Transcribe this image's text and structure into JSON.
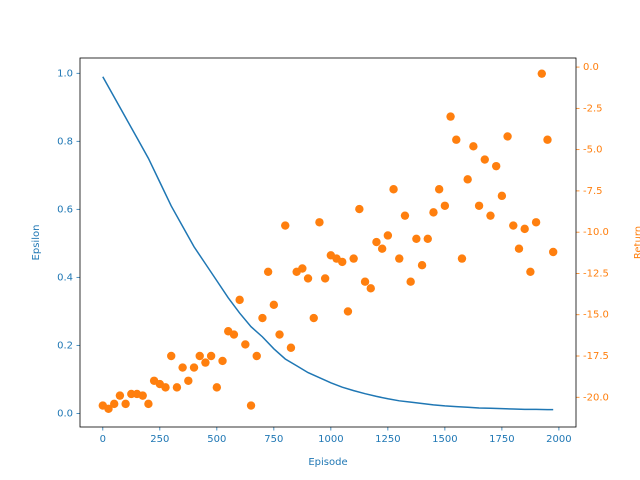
{
  "chart_data": {
    "type": "dual_axis",
    "xlabel": "Episode",
    "ylabel": "Epsilon",
    "y2label": "Return",
    "xlim": [
      -100,
      2075
    ],
    "ylim": [
      -0.04,
      1.045
    ],
    "y2lim": [
      -21.8,
      0.55
    ],
    "xticks": [
      0,
      250,
      500,
      750,
      1000,
      1250,
      1500,
      1750,
      2000
    ],
    "yticks": [
      {
        "value": 0,
        "label": "0.0"
      },
      {
        "value": 0.2,
        "label": "0.2"
      },
      {
        "value": 0.4,
        "label": "0.4"
      },
      {
        "value": 0.6,
        "label": "0.6"
      },
      {
        "value": 0.8,
        "label": "0.8"
      },
      {
        "value": 1,
        "label": "1.0"
      }
    ],
    "y2ticks": [
      {
        "value": 0,
        "label": "0.0"
      },
      {
        "value": -2.5,
        "label": "-2.5"
      },
      {
        "value": -5,
        "label": "-5.0"
      },
      {
        "value": -7.5,
        "label": "-7.5"
      },
      {
        "value": -10,
        "label": "-10.0"
      },
      {
        "value": -12.5,
        "label": "-12.5"
      },
      {
        "value": -15,
        "label": "-15.0"
      },
      {
        "value": -17.5,
        "label": "-17.5"
      },
      {
        "value": -20,
        "label": "-20.0"
      }
    ],
    "series": [
      {
        "type": "line",
        "color": "#1f77b4",
        "x": [
          0,
          50,
          100,
          150,
          200,
          250,
          300,
          350,
          400,
          450,
          500,
          550,
          600,
          650,
          700,
          750,
          800,
          850,
          900,
          950,
          1000,
          1050,
          1100,
          1150,
          1200,
          1250,
          1300,
          1350,
          1400,
          1450,
          1500,
          1550,
          1600,
          1650,
          1700,
          1750,
          1800,
          1850,
          1900,
          1950,
          1975
        ],
        "values": [
          0.99,
          0.93,
          0.87,
          0.81,
          0.75,
          0.68,
          0.61,
          0.55,
          0.49,
          0.44,
          0.39,
          0.34,
          0.295,
          0.255,
          0.225,
          0.19,
          0.16,
          0.14,
          0.12,
          0.105,
          0.09,
          0.077,
          0.067,
          0.058,
          0.05,
          0.043,
          0.037,
          0.033,
          0.029,
          0.025,
          0.022,
          0.02,
          0.018,
          0.016,
          0.015,
          0.014,
          0.013,
          0.012,
          0.012,
          0.011,
          0.011
        ]
      },
      {
        "type": "scatter",
        "color": "#ff7f0e",
        "axis": "y2",
        "x": [
          0,
          25,
          50,
          75,
          100,
          125,
          150,
          175,
          200,
          225,
          250,
          275,
          300,
          325,
          350,
          375,
          400,
          425,
          450,
          475,
          500,
          525,
          550,
          575,
          600,
          625,
          650,
          675,
          700,
          725,
          750,
          775,
          800,
          825,
          850,
          875,
          900,
          925,
          950,
          975,
          1000,
          1025,
          1050,
          1075,
          1100,
          1125,
          1150,
          1175,
          1200,
          1225,
          1250,
          1275,
          1300,
          1325,
          1350,
          1375,
          1400,
          1425,
          1450,
          1475,
          1500,
          1525,
          1550,
          1575,
          1600,
          1625,
          1650,
          1675,
          1700,
          1725,
          1750,
          1775,
          1800,
          1825,
          1850,
          1875,
          1900,
          1925,
          1950,
          1975
        ],
        "values": [
          -20.5,
          -20.7,
          -20.4,
          -19.9,
          -20.4,
          -19.8,
          -19.8,
          -19.9,
          -20.4,
          -19.0,
          -19.2,
          -19.4,
          -17.5,
          -19.4,
          -18.2,
          -19.0,
          -18.2,
          -17.5,
          -17.9,
          -17.5,
          -19.4,
          -17.8,
          -16.0,
          -16.2,
          -14.1,
          -16.8,
          -20.5,
          -17.5,
          -15.2,
          -12.4,
          -14.4,
          -16.2,
          -9.6,
          -17.0,
          -12.4,
          -12.2,
          -12.8,
          -15.2,
          -9.4,
          -12.8,
          -11.4,
          -11.6,
          -11.8,
          -14.8,
          -11.6,
          -8.6,
          -13.0,
          -13.4,
          -10.6,
          -11.0,
          -10.2,
          -7.4,
          -11.6,
          -9.0,
          -13.0,
          -10.4,
          -12.0,
          -10.4,
          -8.8,
          -7.4,
          -8.4,
          -3.0,
          -4.4,
          -11.6,
          -6.8,
          -4.8,
          -8.4,
          -5.6,
          -9.0,
          -6.0,
          -7.8,
          -4.2,
          -9.6,
          -11.0,
          -9.8,
          -12.4,
          -9.4,
          -0.4,
          -4.4,
          -11.2
        ]
      }
    ]
  }
}
